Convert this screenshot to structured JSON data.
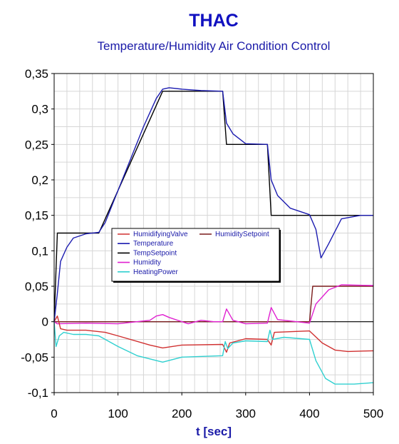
{
  "chart_data": {
    "type": "line",
    "title": "THAC",
    "subtitle": "Temperature/Humidity Air Condition Control",
    "xlabel": "t [sec]",
    "ylabel": "",
    "xlim": [
      0,
      500
    ],
    "ylim": [
      -0.1,
      0.35
    ],
    "xticks": [
      0,
      100,
      200,
      300,
      400,
      500
    ],
    "xtick_labels": [
      "0",
      "100",
      "200",
      "300",
      "400",
      "500"
    ],
    "yticks": [
      -0.1,
      -0.05,
      0,
      0.05,
      0.1,
      0.15,
      0.2,
      0.25,
      0.3,
      0.35
    ],
    "ytick_labels": [
      "-0,1",
      "-0,05",
      "0",
      "0,05",
      "0,1",
      "0,15",
      "0,2",
      "0,25",
      "0,3",
      "0,35"
    ],
    "grid": true,
    "legend": "center-left",
    "series": [
      {
        "name": "HumidifyingValve",
        "color": "#d03030",
        "x": [
          0,
          5,
          10,
          20,
          50,
          80,
          100,
          150,
          170,
          200,
          264,
          270,
          275,
          300,
          334,
          340,
          345,
          400,
          420,
          440,
          460,
          500
        ],
        "y": [
          0,
          0.008,
          -0.01,
          -0.012,
          -0.012,
          -0.015,
          -0.02,
          -0.033,
          -0.037,
          -0.033,
          -0.032,
          -0.043,
          -0.03,
          -0.024,
          -0.025,
          -0.033,
          -0.015,
          -0.013,
          -0.03,
          -0.04,
          -0.042,
          -0.041
        ]
      },
      {
        "name": "HumiditySetpoint",
        "color": "#7a1c1c",
        "x": [
          0,
          400,
          405,
          500
        ],
        "y": [
          0,
          0,
          0.05,
          0.05
        ]
      },
      {
        "name": "Temperature",
        "color": "#1c1cb0",
        "x": [
          0,
          5,
          10,
          20,
          30,
          50,
          70,
          80,
          100,
          120,
          140,
          160,
          170,
          180,
          200,
          230,
          264,
          270,
          280,
          300,
          334,
          340,
          350,
          370,
          400,
          410,
          418,
          430,
          450,
          480,
          500
        ],
        "y": [
          0,
          0.04,
          0.085,
          0.105,
          0.118,
          0.124,
          0.126,
          0.14,
          0.185,
          0.23,
          0.275,
          0.315,
          0.328,
          0.33,
          0.328,
          0.326,
          0.325,
          0.28,
          0.265,
          0.251,
          0.25,
          0.2,
          0.178,
          0.16,
          0.151,
          0.13,
          0.09,
          0.11,
          0.145,
          0.15,
          0.15
        ]
      },
      {
        "name": "TempSetpoint",
        "color": "#000000",
        "x": [
          0,
          5,
          70,
          170,
          264,
          270,
          334,
          340,
          500
        ],
        "y": [
          0,
          0.125,
          0.125,
          0.325,
          0.325,
          0.25,
          0.25,
          0.15,
          0.15
        ]
      },
      {
        "name": "Humidity",
        "color": "#e020d0",
        "x": [
          0,
          5,
          50,
          100,
          150,
          160,
          170,
          180,
          210,
          230,
          250,
          264,
          270,
          280,
          300,
          334,
          340,
          350,
          400,
          410,
          430,
          450,
          500
        ],
        "y": [
          0,
          -0.003,
          -0.002,
          -0.003,
          0.002,
          0.008,
          0.01,
          0.006,
          -0.003,
          0.002,
          0.0,
          0.0,
          0.018,
          0.002,
          -0.003,
          -0.002,
          0.02,
          0.003,
          -0.002,
          0.025,
          0.045,
          0.052,
          0.051
        ]
      },
      {
        "name": "HeatingPower",
        "color": "#30d0d0",
        "x": [
          0,
          3,
          8,
          15,
          30,
          50,
          70,
          80,
          100,
          130,
          170,
          200,
          264,
          268,
          272,
          280,
          300,
          334,
          338,
          342,
          360,
          400,
          410,
          425,
          440,
          470,
          500
        ],
        "y": [
          0,
          -0.035,
          -0.02,
          -0.015,
          -0.018,
          -0.018,
          -0.02,
          -0.025,
          -0.035,
          -0.048,
          -0.057,
          -0.05,
          -0.048,
          -0.028,
          -0.038,
          -0.03,
          -0.027,
          -0.028,
          -0.012,
          -0.025,
          -0.022,
          -0.025,
          -0.055,
          -0.08,
          -0.088,
          -0.088,
          -0.086
        ]
      }
    ],
    "legend_layout": [
      [
        "HumidifyingValve",
        "HumiditySetpoint"
      ],
      [
        "Temperature"
      ],
      [
        "TempSetpoint"
      ],
      [
        "Humidity"
      ],
      [
        "HeatingPower"
      ]
    ]
  }
}
